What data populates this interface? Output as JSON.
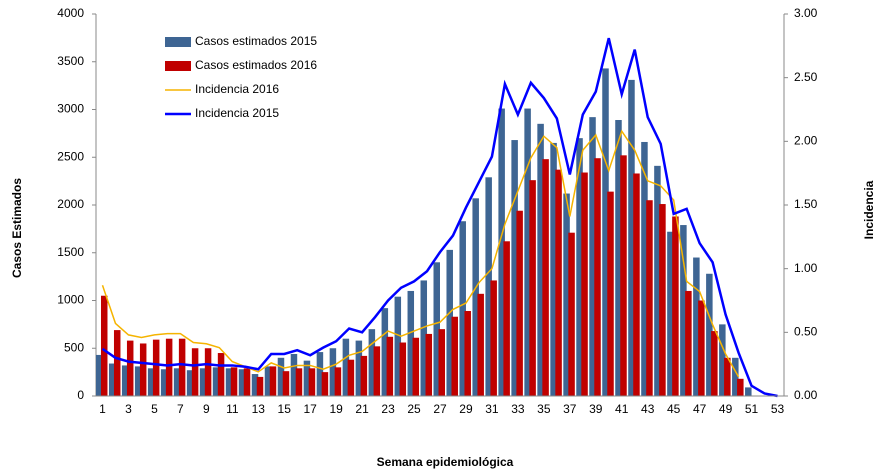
{
  "chart_data": {
    "type": "bar-line",
    "xlabel": "Semana epidemiológica",
    "ylabel": "Casos Estimados",
    "y2label": "Incidencia",
    "categories": [
      "1",
      null,
      "3",
      null,
      "5",
      null,
      "7",
      null,
      "9",
      null,
      "11",
      null,
      "13",
      null,
      "15",
      null,
      "17",
      null,
      "19",
      null,
      "21",
      null,
      "23",
      null,
      "25",
      null,
      "27",
      null,
      "29",
      null,
      "31",
      null,
      "33",
      null,
      "35",
      null,
      "37",
      null,
      "39",
      null,
      "41",
      null,
      "43",
      null,
      "45",
      null,
      "47",
      null,
      "49",
      null,
      "51",
      null,
      "53"
    ],
    "ylim": [
      0,
      4000
    ],
    "yticks": [
      0,
      500,
      1000,
      1500,
      2000,
      2500,
      3000,
      3500,
      4000
    ],
    "y2lim": [
      0,
      3
    ],
    "y2ticks": [
      {
        "value": 0,
        "label": "0.00"
      },
      {
        "value": 0.5,
        "label": "0.50"
      },
      {
        "value": 1,
        "label": "1.00"
      },
      {
        "value": 1.5,
        "label": "1.50"
      },
      {
        "value": 2,
        "label": "2.00"
      },
      {
        "value": 2.5,
        "label": "2.50"
      },
      {
        "value": 3,
        "label": "3.00"
      }
    ],
    "legend": "upper left",
    "series": [
      {
        "name": "Casos estimados 2015",
        "kind": "bar",
        "color": "#3e6593",
        "values": [
          430,
          340,
          320,
          310,
          290,
          280,
          290,
          270,
          290,
          300,
          290,
          280,
          230,
          310,
          400,
          440,
          370,
          460,
          500,
          600,
          580,
          700,
          920,
          1040,
          1100,
          1210,
          1400,
          1530,
          1830,
          2070,
          2290,
          3010,
          2680,
          3010,
          2850,
          2650,
          2120,
          2700,
          2920,
          3430,
          2890,
          3310,
          2660,
          2410,
          1720,
          1790,
          1450,
          1280,
          750,
          400,
          90,
          null,
          null
        ]
      },
      {
        "name": "Casos estimados 2016",
        "kind": "bar",
        "color": "#c00000",
        "values": [
          1050,
          690,
          580,
          550,
          590,
          600,
          600,
          500,
          500,
          450,
          300,
          290,
          200,
          310,
          260,
          290,
          290,
          250,
          300,
          380,
          420,
          520,
          620,
          560,
          610,
          650,
          700,
          830,
          890,
          1070,
          1210,
          1620,
          1940,
          2260,
          2480,
          2370,
          1710,
          2340,
          2490,
          2140,
          2520,
          2330,
          2050,
          2010,
          1880,
          1100,
          1000,
          680,
          400,
          180,
          null,
          null,
          null
        ]
      },
      {
        "name": "Incidencia 2016",
        "kind": "line",
        "axis": "y2",
        "color": "#f5b400",
        "values": [
          0.87,
          0.57,
          0.48,
          0.46,
          0.48,
          0.49,
          0.49,
          0.42,
          0.41,
          0.38,
          0.27,
          0.23,
          0.19,
          0.26,
          0.22,
          0.24,
          0.24,
          0.21,
          0.25,
          0.32,
          0.35,
          0.43,
          0.51,
          0.47,
          0.51,
          0.55,
          0.58,
          0.68,
          0.73,
          0.89,
          1.0,
          1.35,
          1.61,
          1.87,
          2.04,
          1.95,
          1.41,
          1.93,
          2.05,
          1.77,
          2.08,
          1.93,
          1.69,
          1.65,
          1.54,
          0.9,
          0.82,
          0.56,
          0.33,
          0.15,
          null,
          null,
          null
        ]
      },
      {
        "name": "Incidencia 2015",
        "kind": "line",
        "axis": "y2",
        "color": "#0000ff",
        "values": [
          0.37,
          0.3,
          0.27,
          0.26,
          0.25,
          0.24,
          0.25,
          0.24,
          0.25,
          0.24,
          0.24,
          0.23,
          0.21,
          0.33,
          0.33,
          0.36,
          0.32,
          0.38,
          0.43,
          0.53,
          0.5,
          0.62,
          0.75,
          0.85,
          0.9,
          0.98,
          1.13,
          1.26,
          1.48,
          1.68,
          1.88,
          2.45,
          2.21,
          2.46,
          2.34,
          2.18,
          1.74,
          2.21,
          2.39,
          2.81,
          2.37,
          2.72,
          2.19,
          1.98,
          1.43,
          1.47,
          1.2,
          1.05,
          0.64,
          0.34,
          0.08,
          0.02,
          0
        ]
      }
    ]
  }
}
